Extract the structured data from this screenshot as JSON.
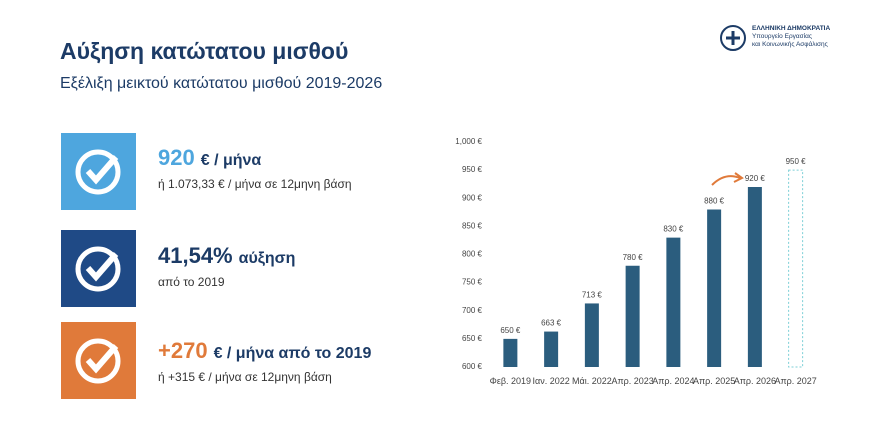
{
  "header": {
    "title": "Αύξηση κατώτατου μισθού",
    "subtitle": "Εξέλιξη μεικτού κατώτατου μισθού 2019-2026"
  },
  "logo": {
    "line1": "ΕΛΛΗΝΙΚΗ ΔΗΜΟΚΡΑΤΙΑ",
    "line2": "Υπουργείο Εργασίας",
    "line3": "και Κοινωνικής Ασφάλισης"
  },
  "cards": [
    {
      "big": "920",
      "unit": "€ / μήνα",
      "note": "ή 1.073,33 € / μήνα σε 12μηνη βάση"
    },
    {
      "big": "41,54%",
      "unit": "αύξηση",
      "note": "από το 2019"
    },
    {
      "big": "+270",
      "unit": "€ / μήνα από το 2019",
      "note": "ή +315 € / μήνα σε 12μηνη βάση"
    }
  ],
  "chart_data": {
    "type": "bar",
    "categories": [
      "Φεβ. 2019",
      "Ιαν. 2022",
      "Μάι. 2022",
      "Απρ. 2023",
      "Απρ. 2024",
      "Απρ. 2025",
      "Απρ. 2026",
      "Απρ. 2027"
    ],
    "values": [
      650,
      663,
      713,
      780,
      830,
      880,
      920,
      950
    ],
    "value_labels": [
      "650 €",
      "663 €",
      "713 €",
      "780 €",
      "830 €",
      "880 €",
      "920 €",
      "950 €"
    ],
    "styles": [
      "solid",
      "solid",
      "solid",
      "solid",
      "solid",
      "solid",
      "solid",
      "dashed"
    ],
    "color": "#2b5d7e",
    "ylim": [
      600,
      1000
    ],
    "yticks": [
      {
        "value": 600,
        "label": "600 €"
      },
      {
        "value": 650,
        "label": "650 €"
      },
      {
        "value": 700,
        "label": "700 €"
      },
      {
        "value": 750,
        "label": "750 €"
      },
      {
        "value": 800,
        "label": "800 €"
      },
      {
        "value": 850,
        "label": "850 €"
      },
      {
        "value": 900,
        "label": "900 €"
      },
      {
        "value": 950,
        "label": "950 €"
      },
      {
        "value": 1000,
        "label": "1,000 €"
      }
    ]
  }
}
